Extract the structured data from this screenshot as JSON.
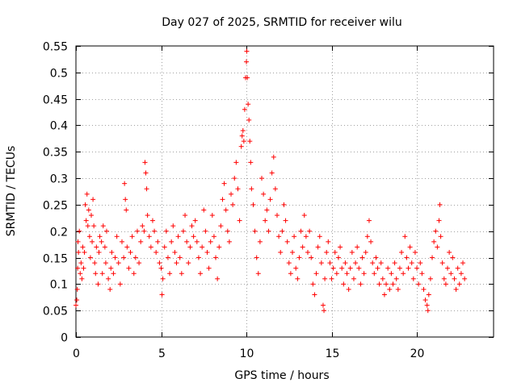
{
  "chart_data": {
    "type": "scatter",
    "title": "Day 027 of 2025, SRMTID for receiver wilu",
    "xlabel": "GPS time / hours",
    "ylabel": "SRMTID / TECUs",
    "xlim": [
      0,
      24.5
    ],
    "ylim": [
      0,
      0.55
    ],
    "xticks": [
      0,
      5,
      10,
      15,
      20
    ],
    "yticks": [
      0,
      0.05,
      0.1,
      0.15,
      0.2,
      0.25,
      0.3,
      0.35,
      0.4,
      0.45,
      0.5,
      0.55
    ],
    "xtick_labels": [
      "0",
      "5",
      "10",
      "15",
      "20"
    ],
    "ytick_labels": [
      "0",
      "0.05",
      "0.1",
      "0.15",
      "0.2",
      "0.25",
      "0.3",
      "0.35",
      "0.4",
      "0.45",
      "0.5",
      "0.55"
    ],
    "grid": true,
    "marker": "plus",
    "marker_color": "#ff0000",
    "series": [
      {
        "name": "SRMTID",
        "points": [
          [
            0.0,
            0.06
          ],
          [
            0.05,
            0.07
          ],
          [
            0.08,
            0.09
          ],
          [
            0.1,
            0.13
          ],
          [
            0.12,
            0.18
          ],
          [
            0.15,
            0.16
          ],
          [
            0.2,
            0.2
          ],
          [
            0.25,
            0.12
          ],
          [
            0.3,
            0.14
          ],
          [
            0.35,
            0.11
          ],
          [
            0.4,
            0.17
          ],
          [
            0.45,
            0.13
          ],
          [
            0.5,
            0.16
          ],
          [
            0.55,
            0.25
          ],
          [
            0.6,
            0.22
          ],
          [
            0.65,
            0.27
          ],
          [
            0.7,
            0.21
          ],
          [
            0.75,
            0.24
          ],
          [
            0.8,
            0.19
          ],
          [
            0.85,
            0.15
          ],
          [
            0.9,
            0.23
          ],
          [
            0.95,
            0.18
          ],
          [
            1.0,
            0.26
          ],
          [
            1.05,
            0.21
          ],
          [
            1.1,
            0.14
          ],
          [
            1.15,
            0.12
          ],
          [
            1.2,
            0.17
          ],
          [
            1.3,
            0.1
          ],
          [
            1.35,
            0.16
          ],
          [
            1.4,
            0.19
          ],
          [
            1.5,
            0.18
          ],
          [
            1.55,
            0.12
          ],
          [
            1.6,
            0.21
          ],
          [
            1.7,
            0.17
          ],
          [
            1.75,
            0.14
          ],
          [
            1.8,
            0.2
          ],
          [
            1.9,
            0.11
          ],
          [
            2.0,
            0.09
          ],
          [
            2.05,
            0.13
          ],
          [
            2.1,
            0.16
          ],
          [
            2.2,
            0.12
          ],
          [
            2.3,
            0.15
          ],
          [
            2.4,
            0.19
          ],
          [
            2.5,
            0.14
          ],
          [
            2.6,
            0.1
          ],
          [
            2.7,
            0.18
          ],
          [
            2.8,
            0.15
          ],
          [
            2.85,
            0.29
          ],
          [
            2.9,
            0.26
          ],
          [
            2.95,
            0.24
          ],
          [
            3.0,
            0.17
          ],
          [
            3.1,
            0.13
          ],
          [
            3.2,
            0.16
          ],
          [
            3.3,
            0.19
          ],
          [
            3.4,
            0.12
          ],
          [
            3.5,
            0.15
          ],
          [
            3.6,
            0.2
          ],
          [
            3.7,
            0.14
          ],
          [
            3.8,
            0.18
          ],
          [
            3.9,
            0.21
          ],
          [
            4.0,
            0.2
          ],
          [
            4.05,
            0.33
          ],
          [
            4.1,
            0.31
          ],
          [
            4.15,
            0.28
          ],
          [
            4.2,
            0.23
          ],
          [
            4.3,
            0.19
          ],
          [
            4.4,
            0.17
          ],
          [
            4.5,
            0.22
          ],
          [
            4.6,
            0.2
          ],
          [
            4.7,
            0.16
          ],
          [
            4.8,
            0.18
          ],
          [
            4.9,
            0.14
          ],
          [
            5.0,
            0.13
          ],
          [
            5.05,
            0.08
          ],
          [
            5.1,
            0.11
          ],
          [
            5.2,
            0.17
          ],
          [
            5.3,
            0.2
          ],
          [
            5.4,
            0.15
          ],
          [
            5.5,
            0.12
          ],
          [
            5.6,
            0.18
          ],
          [
            5.7,
            0.21
          ],
          [
            5.8,
            0.16
          ],
          [
            5.9,
            0.14
          ],
          [
            6.0,
            0.19
          ],
          [
            6.1,
            0.15
          ],
          [
            6.2,
            0.12
          ],
          [
            6.3,
            0.2
          ],
          [
            6.4,
            0.23
          ],
          [
            6.5,
            0.18
          ],
          [
            6.6,
            0.14
          ],
          [
            6.7,
            0.17
          ],
          [
            6.8,
            0.21
          ],
          [
            6.9,
            0.19
          ],
          [
            7.0,
            0.22
          ],
          [
            7.1,
            0.18
          ],
          [
            7.2,
            0.15
          ],
          [
            7.3,
            0.12
          ],
          [
            7.4,
            0.17
          ],
          [
            7.5,
            0.24
          ],
          [
            7.6,
            0.2
          ],
          [
            7.7,
            0.16
          ],
          [
            7.8,
            0.13
          ],
          [
            7.9,
            0.18
          ],
          [
            8.0,
            0.23
          ],
          [
            8.1,
            0.19
          ],
          [
            8.2,
            0.15
          ],
          [
            8.3,
            0.11
          ],
          [
            8.4,
            0.17
          ],
          [
            8.5,
            0.21
          ],
          [
            8.6,
            0.26
          ],
          [
            8.7,
            0.29
          ],
          [
            8.8,
            0.24
          ],
          [
            8.9,
            0.2
          ],
          [
            9.0,
            0.18
          ],
          [
            9.1,
            0.27
          ],
          [
            9.2,
            0.25
          ],
          [
            9.3,
            0.3
          ],
          [
            9.4,
            0.33
          ],
          [
            9.5,
            0.28
          ],
          [
            9.6,
            0.22
          ],
          [
            9.7,
            0.36
          ],
          [
            9.75,
            0.38
          ],
          [
            9.8,
            0.39
          ],
          [
            9.85,
            0.37
          ],
          [
            9.9,
            0.43
          ],
          [
            9.95,
            0.49
          ],
          [
            10.0,
            0.52
          ],
          [
            10.02,
            0.54
          ],
          [
            10.05,
            0.49
          ],
          [
            10.1,
            0.44
          ],
          [
            10.15,
            0.41
          ],
          [
            10.2,
            0.37
          ],
          [
            10.25,
            0.33
          ],
          [
            10.3,
            0.28
          ],
          [
            10.4,
            0.25
          ],
          [
            10.5,
            0.2
          ],
          [
            10.6,
            0.15
          ],
          [
            10.7,
            0.12
          ],
          [
            10.8,
            0.18
          ],
          [
            10.9,
            0.3
          ],
          [
            11.0,
            0.27
          ],
          [
            11.1,
            0.22
          ],
          [
            11.2,
            0.24
          ],
          [
            11.3,
            0.2
          ],
          [
            11.4,
            0.26
          ],
          [
            11.5,
            0.31
          ],
          [
            11.6,
            0.34
          ],
          [
            11.7,
            0.28
          ],
          [
            11.8,
            0.23
          ],
          [
            11.9,
            0.19
          ],
          [
            12.0,
            0.16
          ],
          [
            12.1,
            0.2
          ],
          [
            12.2,
            0.25
          ],
          [
            12.3,
            0.22
          ],
          [
            12.4,
            0.18
          ],
          [
            12.5,
            0.14
          ],
          [
            12.6,
            0.12
          ],
          [
            12.7,
            0.16
          ],
          [
            12.8,
            0.19
          ],
          [
            12.9,
            0.13
          ],
          [
            13.0,
            0.11
          ],
          [
            13.1,
            0.15
          ],
          [
            13.2,
            0.2
          ],
          [
            13.3,
            0.17
          ],
          [
            13.4,
            0.23
          ],
          [
            13.5,
            0.19
          ],
          [
            13.6,
            0.16
          ],
          [
            13.7,
            0.2
          ],
          [
            13.8,
            0.15
          ],
          [
            13.9,
            0.1
          ],
          [
            14.0,
            0.08
          ],
          [
            14.1,
            0.12
          ],
          [
            14.2,
            0.17
          ],
          [
            14.3,
            0.19
          ],
          [
            14.4,
            0.14
          ],
          [
            14.5,
            0.06
          ],
          [
            14.55,
            0.05
          ],
          [
            14.6,
            0.11
          ],
          [
            14.7,
            0.16
          ],
          [
            14.8,
            0.18
          ],
          [
            14.9,
            0.14
          ],
          [
            15.0,
            0.11
          ],
          [
            15.1,
            0.13
          ],
          [
            15.2,
            0.16
          ],
          [
            15.3,
            0.12
          ],
          [
            15.4,
            0.15
          ],
          [
            15.5,
            0.17
          ],
          [
            15.6,
            0.13
          ],
          [
            15.7,
            0.1
          ],
          [
            15.8,
            0.14
          ],
          [
            15.9,
            0.12
          ],
          [
            16.0,
            0.09
          ],
          [
            16.1,
            0.13
          ],
          [
            16.2,
            0.16
          ],
          [
            16.3,
            0.11
          ],
          [
            16.4,
            0.14
          ],
          [
            16.5,
            0.17
          ],
          [
            16.6,
            0.13
          ],
          [
            16.7,
            0.1
          ],
          [
            16.8,
            0.15
          ],
          [
            16.9,
            0.12
          ],
          [
            17.0,
            0.16
          ],
          [
            17.1,
            0.19
          ],
          [
            17.2,
            0.22
          ],
          [
            17.3,
            0.18
          ],
          [
            17.4,
            0.14
          ],
          [
            17.5,
            0.12
          ],
          [
            17.6,
            0.15
          ],
          [
            17.7,
            0.13
          ],
          [
            17.8,
            0.1
          ],
          [
            17.9,
            0.14
          ],
          [
            18.0,
            0.11
          ],
          [
            18.1,
            0.08
          ],
          [
            18.2,
            0.1
          ],
          [
            18.3,
            0.13
          ],
          [
            18.4,
            0.09
          ],
          [
            18.5,
            0.12
          ],
          [
            18.6,
            0.1
          ],
          [
            18.7,
            0.14
          ],
          [
            18.8,
            0.11
          ],
          [
            18.9,
            0.09
          ],
          [
            19.0,
            0.13
          ],
          [
            19.1,
            0.16
          ],
          [
            19.2,
            0.12
          ],
          [
            19.3,
            0.19
          ],
          [
            19.4,
            0.15
          ],
          [
            19.5,
            0.13
          ],
          [
            19.6,
            0.17
          ],
          [
            19.7,
            0.14
          ],
          [
            19.8,
            0.11
          ],
          [
            19.9,
            0.16
          ],
          [
            20.0,
            0.13
          ],
          [
            20.1,
            0.1
          ],
          [
            20.2,
            0.14
          ],
          [
            20.3,
            0.12
          ],
          [
            20.4,
            0.09
          ],
          [
            20.5,
            0.07
          ],
          [
            20.6,
            0.06
          ],
          [
            20.65,
            0.05
          ],
          [
            20.7,
            0.08
          ],
          [
            20.8,
            0.11
          ],
          [
            20.9,
            0.15
          ],
          [
            21.0,
            0.18
          ],
          [
            21.1,
            0.2
          ],
          [
            21.2,
            0.17
          ],
          [
            21.3,
            0.22
          ],
          [
            21.35,
            0.25
          ],
          [
            21.4,
            0.19
          ],
          [
            21.5,
            0.14
          ],
          [
            21.6,
            0.11
          ],
          [
            21.7,
            0.1
          ],
          [
            21.8,
            0.13
          ],
          [
            21.9,
            0.16
          ],
          [
            22.0,
            0.12
          ],
          [
            22.1,
            0.15
          ],
          [
            22.2,
            0.11
          ],
          [
            22.3,
            0.09
          ],
          [
            22.4,
            0.13
          ],
          [
            22.5,
            0.1
          ],
          [
            22.6,
            0.12
          ],
          [
            22.7,
            0.14
          ],
          [
            22.8,
            0.11
          ]
        ]
      }
    ]
  }
}
